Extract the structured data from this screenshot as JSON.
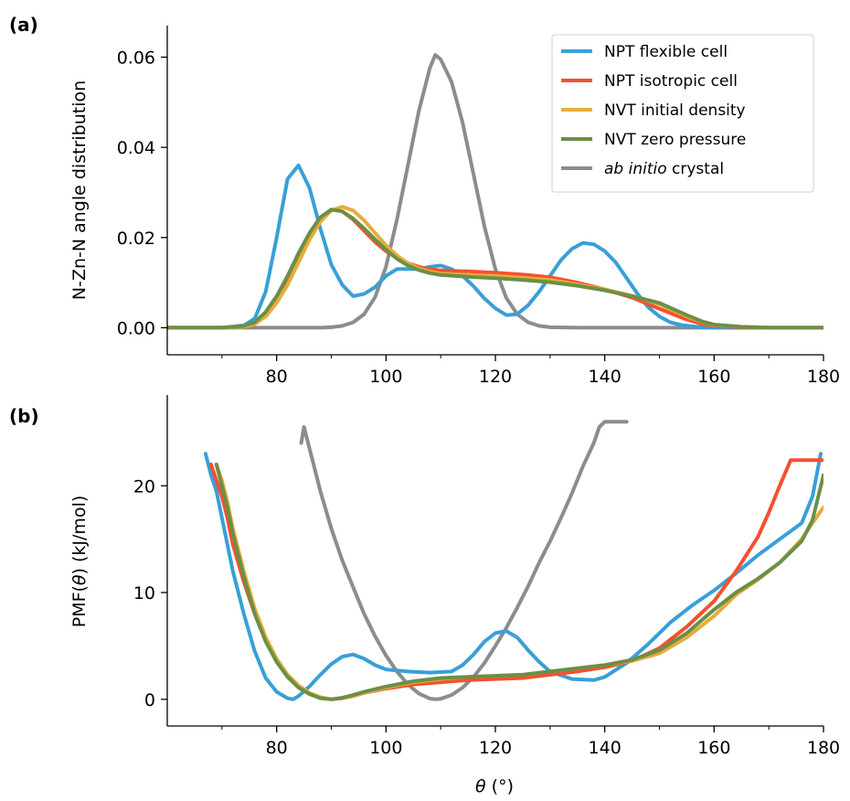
{
  "panels": [
    {
      "id": "a",
      "label": "(a)",
      "ylabel": "N-Zn-N angle distribution",
      "xlabel": ""
    },
    {
      "id": "b",
      "label": "(b)",
      "ylabel_pre": "PMF(",
      "ylabel_var": "θ",
      "ylabel_post": ") (kJ/mol)",
      "xlabel_var": "θ",
      "xlabel_post": " (°)"
    }
  ],
  "legend": [
    {
      "prefix": "",
      "italic": "",
      "text": "NPT flexible cell"
    },
    {
      "prefix": "",
      "italic": "",
      "text": "NPT isotropic cell"
    },
    {
      "prefix": "",
      "italic": "",
      "text": "NVT initial density"
    },
    {
      "prefix": "",
      "italic": "",
      "text": "NVT zero pressure"
    },
    {
      "prefix": "",
      "italic": "ab initio",
      "text": " crystal"
    }
  ],
  "colors": {
    "npt_flexible": "#3a9fd6",
    "npt_isotropic": "#f4502f",
    "nvt_initial": "#e5ad38",
    "nvt_zero": "#6b8f48",
    "ab_initio": "#8c8c8c"
  },
  "chart_data": [
    {
      "type": "line",
      "panel": "a",
      "xlabel": "",
      "ylabel": "N-Zn-N angle distribution",
      "xlim": [
        60,
        180
      ],
      "ylim": [
        -0.006,
        0.067
      ],
      "xticks": [
        80,
        100,
        120,
        140,
        160,
        180
      ],
      "xtick_labels": [
        "80",
        "100",
        "120",
        "140",
        "160",
        "180"
      ],
      "yticks": [
        0,
        0.02,
        0.04,
        0.06
      ],
      "ytick_labels": [
        "0.00",
        "0.02",
        "0.04",
        "0.06"
      ],
      "legend_position": "top-right",
      "series": [
        {
          "name": "NPT flexible cell",
          "color": "#3a9fd6",
          "x": [
            60,
            70,
            74,
            76,
            78,
            80,
            82,
            84,
            86,
            88,
            90,
            92,
            94,
            96,
            98,
            100,
            102,
            104,
            106,
            108,
            110,
            112,
            114,
            116,
            118,
            120,
            122,
            124,
            126,
            128,
            130,
            132,
            134,
            136,
            138,
            140,
            142,
            144,
            146,
            148,
            150,
            152,
            154,
            156,
            158,
            160,
            165,
            170,
            180
          ],
          "y": [
            0,
            0,
            0.0005,
            0.002,
            0.008,
            0.02,
            0.033,
            0.036,
            0.031,
            0.022,
            0.014,
            0.0095,
            0.007,
            0.0075,
            0.009,
            0.0115,
            0.013,
            0.013,
            0.013,
            0.0135,
            0.0138,
            0.013,
            0.0115,
            0.0092,
            0.0065,
            0.0043,
            0.0028,
            0.003,
            0.005,
            0.008,
            0.0115,
            0.015,
            0.0175,
            0.0188,
            0.0185,
            0.017,
            0.0145,
            0.011,
            0.0075,
            0.0045,
            0.0025,
            0.0012,
            0.0006,
            0.0003,
            0.0001,
            0,
            0,
            0,
            0
          ]
        },
        {
          "name": "NPT isotropic cell",
          "color": "#f4502f",
          "x": [
            60,
            70,
            74,
            76,
            78,
            80,
            82,
            84,
            86,
            88,
            90,
            92,
            94,
            96,
            98,
            100,
            102,
            104,
            106,
            108,
            110,
            115,
            120,
            125,
            130,
            135,
            140,
            145,
            150,
            155,
            158,
            160,
            165,
            170,
            180
          ],
          "y": [
            0,
            0,
            0.0003,
            0.001,
            0.003,
            0.0065,
            0.011,
            0.016,
            0.0205,
            0.024,
            0.0262,
            0.0258,
            0.024,
            0.0215,
            0.019,
            0.017,
            0.0155,
            0.0143,
            0.0135,
            0.013,
            0.0127,
            0.0125,
            0.0122,
            0.0118,
            0.0112,
            0.01,
            0.0085,
            0.0067,
            0.0042,
            0.0018,
            0.0008,
            0.0004,
            0.0001,
            0,
            0
          ]
        },
        {
          "name": "NVT initial density",
          "color": "#e5ad38",
          "x": [
            60,
            70,
            74,
            76,
            78,
            80,
            82,
            84,
            86,
            88,
            90,
            92,
            94,
            96,
            98,
            100,
            102,
            104,
            106,
            108,
            110,
            115,
            120,
            125,
            130,
            135,
            140,
            145,
            150,
            155,
            158,
            160,
            165,
            170,
            180
          ],
          "y": [
            0,
            0,
            0.0002,
            0.0008,
            0.0025,
            0.0055,
            0.0095,
            0.0145,
            0.0195,
            0.0235,
            0.026,
            0.0268,
            0.026,
            0.0238,
            0.021,
            0.0183,
            0.016,
            0.0143,
            0.0132,
            0.0125,
            0.012,
            0.0117,
            0.0115,
            0.0111,
            0.0106,
            0.0096,
            0.0085,
            0.0071,
            0.0052,
            0.0025,
            0.0012,
            0.0006,
            0.0002,
            0,
            0
          ]
        },
        {
          "name": "NVT zero pressure",
          "color": "#6b8f48",
          "x": [
            60,
            70,
            74,
            76,
            78,
            80,
            82,
            84,
            86,
            88,
            90,
            92,
            94,
            96,
            98,
            100,
            102,
            104,
            106,
            108,
            110,
            115,
            120,
            125,
            130,
            135,
            140,
            145,
            150,
            155,
            158,
            160,
            165,
            170,
            180
          ],
          "y": [
            0,
            0,
            0.0004,
            0.0012,
            0.0035,
            0.007,
            0.0115,
            0.0165,
            0.021,
            0.0245,
            0.0262,
            0.0258,
            0.0242,
            0.022,
            0.0196,
            0.0173,
            0.0153,
            0.0138,
            0.0128,
            0.0121,
            0.0117,
            0.0113,
            0.011,
            0.0106,
            0.0101,
            0.0093,
            0.0083,
            0.007,
            0.0055,
            0.0028,
            0.0013,
            0.0007,
            0.0002,
            0,
            0
          ]
        },
        {
          "name": "ab initio crystal",
          "color": "#8c8c8c",
          "x": [
            60,
            88,
            90,
            92,
            94,
            96,
            98,
            100,
            102,
            104,
            106,
            108,
            109,
            110,
            112,
            114,
            116,
            118,
            120,
            122,
            124,
            126,
            128,
            130,
            135,
            180
          ],
          "y": [
            0,
            0,
            0.0001,
            0.0004,
            0.0012,
            0.003,
            0.0068,
            0.0135,
            0.024,
            0.036,
            0.048,
            0.0575,
            0.0605,
            0.0595,
            0.0545,
            0.0455,
            0.034,
            0.0225,
            0.013,
            0.0066,
            0.003,
            0.0012,
            0.0004,
            0.0001,
            0,
            0
          ]
        }
      ]
    },
    {
      "type": "line",
      "panel": "b",
      "xlabel": "θ (°)",
      "ylabel": "PMF(θ) (kJ/mol)",
      "xlim": [
        60,
        180
      ],
      "ylim": [
        -2.5,
        28.5
      ],
      "xticks": [
        80,
        100,
        120,
        140,
        160,
        180
      ],
      "xtick_labels": [
        "80",
        "100",
        "120",
        "140",
        "160",
        "180"
      ],
      "yticks": [
        0,
        10,
        20
      ],
      "ytick_labels": [
        "0",
        "10",
        "20"
      ],
      "series": [
        {
          "name": "NPT flexible cell",
          "color": "#3a9fd6",
          "x": [
            67,
            68,
            69,
            70,
            71,
            72,
            74,
            76,
            78,
            80,
            82,
            83,
            84,
            86,
            88,
            90,
            92,
            94,
            96,
            98,
            100,
            104,
            108,
            112,
            114,
            116,
            118,
            120,
            122,
            124,
            126,
            128,
            130,
            134,
            138,
            140,
            144,
            148,
            152,
            156,
            160,
            164,
            168,
            172,
            176,
            178,
            179.5
          ],
          "y": [
            23,
            21,
            19.5,
            17,
            14.5,
            12,
            8,
            4.5,
            2,
            0.7,
            0.1,
            0,
            0.3,
            1.2,
            2.3,
            3.3,
            4,
            4.2,
            3.8,
            3.2,
            2.8,
            2.6,
            2.5,
            2.6,
            3.2,
            4.2,
            5.4,
            6.2,
            6.4,
            5.8,
            4.6,
            3.5,
            2.6,
            1.9,
            1.8,
            2.1,
            3.4,
            5.2,
            7.2,
            8.8,
            10.2,
            11.8,
            13.5,
            15,
            16.5,
            19,
            23
          ]
        },
        {
          "name": "NPT isotropic cell",
          "color": "#f4502f",
          "x": [
            68,
            69,
            70,
            71,
            72,
            74,
            76,
            78,
            80,
            82,
            84,
            86,
            88,
            90,
            92,
            94,
            96,
            100,
            105,
            110,
            115,
            120,
            125,
            130,
            135,
            140,
            145,
            150,
            155,
            160,
            164,
            168,
            170,
            172,
            174,
            176,
            178,
            180
          ],
          "y": [
            22,
            20.5,
            19,
            17,
            14.5,
            11,
            8,
            5.5,
            3.6,
            2.2,
            1.2,
            0.5,
            0.15,
            0,
            0.1,
            0.3,
            0.6,
            1,
            1.4,
            1.6,
            1.8,
            1.9,
            2,
            2.3,
            2.6,
            3,
            3.6,
            4.8,
            6.8,
            9.2,
            12,
            15.2,
            17.5,
            20,
            22.4,
            22.4,
            22.4,
            22.4
          ]
        },
        {
          "name": "NVT initial density",
          "color": "#e5ad38",
          "x": [
            69,
            70,
            71,
            72,
            74,
            76,
            78,
            80,
            82,
            84,
            86,
            88,
            90,
            92,
            94,
            96,
            100,
            105,
            110,
            115,
            120,
            125,
            130,
            135,
            140,
            145,
            150,
            155,
            160,
            164,
            168,
            172,
            176,
            178,
            180
          ],
          "y": [
            22,
            20.5,
            18.5,
            16,
            12,
            8.5,
            5.8,
            3.8,
            2.3,
            1.3,
            0.6,
            0.2,
            0,
            0.1,
            0.3,
            0.6,
            1.1,
            1.6,
            1.9,
            2.1,
            2.2,
            2.3,
            2.6,
            2.9,
            3.2,
            3.6,
            4.3,
            5.8,
            7.8,
            9.8,
            11.2,
            12.8,
            15,
            16.5,
            18
          ]
        },
        {
          "name": "NVT zero pressure",
          "color": "#6b8f48",
          "x": [
            69,
            70,
            71,
            72,
            74,
            76,
            78,
            80,
            82,
            84,
            86,
            88,
            90,
            92,
            94,
            96,
            100,
            105,
            110,
            115,
            120,
            125,
            130,
            135,
            140,
            145,
            150,
            155,
            160,
            164,
            168,
            172,
            176,
            178,
            180
          ],
          "y": [
            22,
            20,
            18,
            15.5,
            11.5,
            8,
            5.4,
            3.5,
            2.1,
            1.1,
            0.5,
            0.1,
            0,
            0.15,
            0.4,
            0.7,
            1.2,
            1.7,
            2,
            2.1,
            2.2,
            2.3,
            2.6,
            2.9,
            3.2,
            3.7,
            4.6,
            6.2,
            8.4,
            10,
            11.3,
            12.8,
            14.8,
            16.8,
            21
          ]
        },
        {
          "name": "ab initio crystal",
          "color": "#8c8c8c",
          "x": [
            84.5,
            85,
            86,
            87,
            88,
            90,
            92,
            94,
            96,
            98,
            100,
            102,
            104,
            106,
            108,
            109,
            110,
            112,
            114,
            116,
            118,
            120,
            122,
            124,
            126,
            128,
            130,
            132,
            134,
            136,
            138,
            139,
            140,
            142,
            144
          ],
          "y": [
            24,
            25.5,
            23.5,
            21.5,
            19.5,
            16,
            13,
            10.5,
            8,
            5.9,
            4.1,
            2.6,
            1.4,
            0.55,
            0.08,
            0,
            0.05,
            0.4,
            1.1,
            2.1,
            3.4,
            5,
            6.7,
            8.6,
            10.6,
            12.8,
            14.8,
            17,
            19.3,
            21.8,
            24,
            25.5,
            26,
            26,
            26
          ]
        }
      ]
    }
  ]
}
